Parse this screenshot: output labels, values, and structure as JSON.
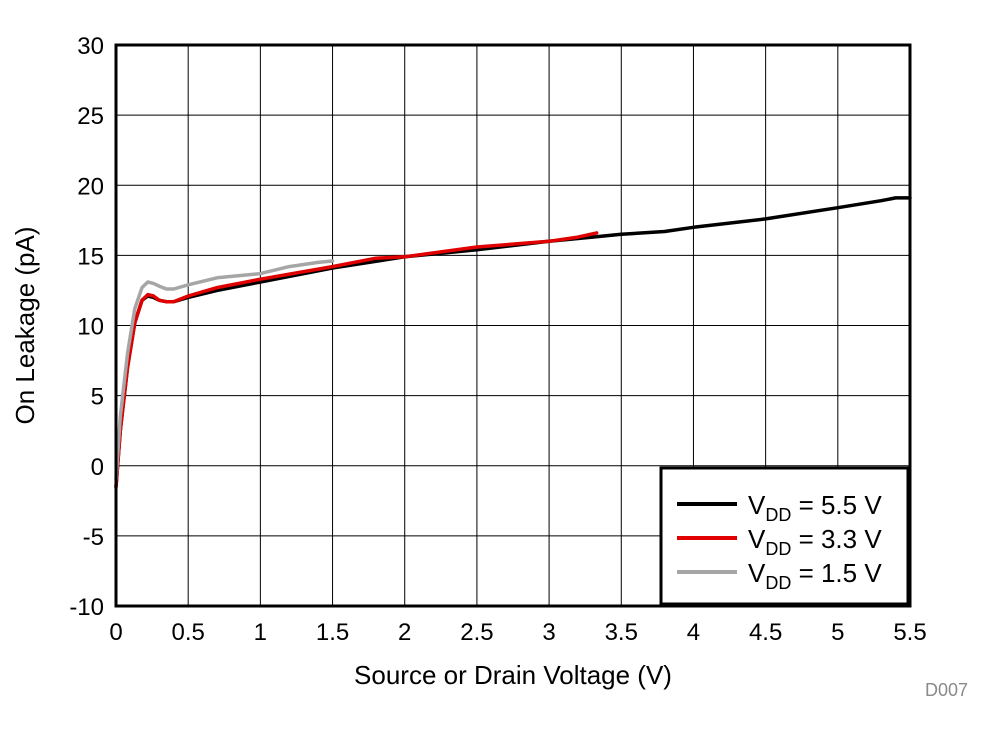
{
  "chart_data": {
    "type": "line",
    "title": "",
    "xlabel": "Source or Drain Voltage (V)",
    "ylabel": "On Leakage (pA)",
    "xlim": [
      0,
      5.5
    ],
    "ylim": [
      -10,
      30
    ],
    "x_ticks": [
      0,
      0.5,
      1,
      1.5,
      2,
      2.5,
      3,
      3.5,
      4,
      4.5,
      5,
      5.5
    ],
    "x_tick_labels": [
      "0",
      "0.5",
      "1",
      "1.5",
      "2",
      "2.5",
      "3",
      "3.5",
      "4",
      "4.5",
      "5",
      "5.5"
    ],
    "y_ticks": [
      -10,
      -5,
      0,
      5,
      10,
      15,
      20,
      25,
      30
    ],
    "y_tick_labels": [
      "-10",
      "-5",
      "0",
      "5",
      "10",
      "15",
      "20",
      "25",
      "30"
    ],
    "grid": true,
    "legend_position": "bottom-right",
    "figure_id": "D007",
    "series": [
      {
        "name_main": "V",
        "name_sub": "DD",
        "name_rest": " = 5.5 V",
        "color": "#000000",
        "x": [
          0,
          0.03,
          0.08,
          0.13,
          0.18,
          0.22,
          0.26,
          0.3,
          0.35,
          0.4,
          0.5,
          0.7,
          1.0,
          1.5,
          2.0,
          2.5,
          3.0,
          3.3,
          3.5,
          3.8,
          4.0,
          4.5,
          5.0,
          5.3,
          5.4,
          5.5
        ],
        "y": [
          -1.5,
          2.5,
          7.0,
          10.2,
          11.8,
          12.1,
          12.0,
          11.8,
          11.7,
          11.7,
          12.0,
          12.5,
          13.1,
          14.1,
          14.9,
          15.4,
          16.0,
          16.3,
          16.5,
          16.7,
          17.0,
          17.6,
          18.4,
          18.9,
          19.1,
          19.1
        ]
      },
      {
        "name_main": "V",
        "name_sub": "DD",
        "name_rest": " = 3.3 V",
        "color": "#e00000",
        "x": [
          0,
          0.03,
          0.08,
          0.13,
          0.18,
          0.22,
          0.26,
          0.3,
          0.35,
          0.4,
          0.5,
          0.7,
          1.0,
          1.5,
          1.8,
          2.0,
          2.5,
          3.0,
          3.2,
          3.33
        ],
        "y": [
          -1.5,
          2.5,
          7.0,
          10.2,
          11.8,
          12.2,
          12.1,
          11.8,
          11.7,
          11.7,
          12.1,
          12.7,
          13.3,
          14.2,
          14.8,
          14.9,
          15.6,
          16.0,
          16.3,
          16.6
        ]
      },
      {
        "name_main": "V",
        "name_sub": "DD",
        "name_rest": " = 1.5 V",
        "color": "#a6a6a6",
        "x": [
          0,
          0.03,
          0.08,
          0.13,
          0.18,
          0.22,
          0.26,
          0.3,
          0.35,
          0.4,
          0.5,
          0.7,
          1.0,
          1.2,
          1.4,
          1.5
        ],
        "y": [
          -1.0,
          3.5,
          8.0,
          11.2,
          12.7,
          13.1,
          13.0,
          12.8,
          12.6,
          12.6,
          12.9,
          13.4,
          13.7,
          14.2,
          14.5,
          14.6
        ]
      }
    ]
  }
}
